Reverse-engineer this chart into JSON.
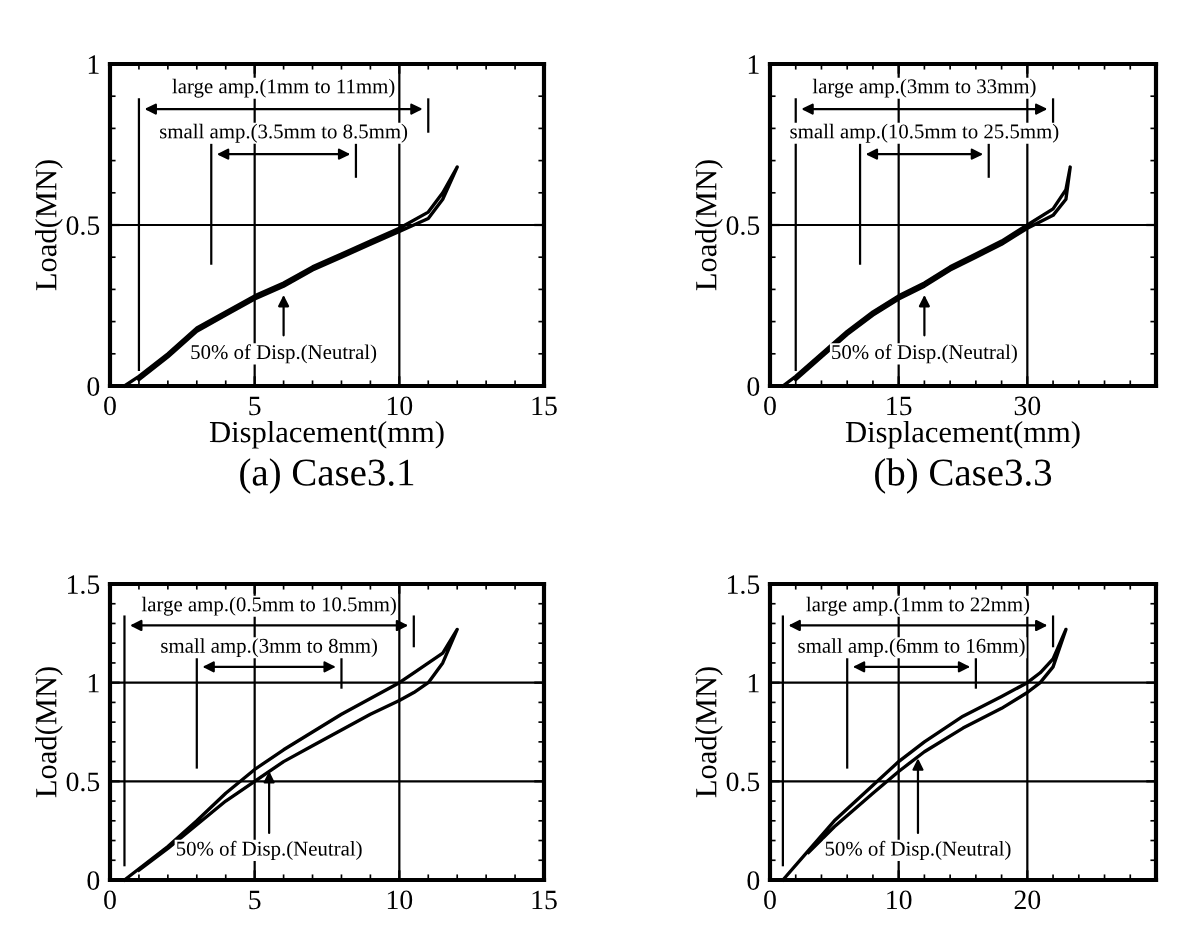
{
  "chart_data": [
    {
      "type": "line",
      "xlabel": "Displacement(mm)",
      "ylabel": "Load(MN)",
      "xlim": [
        0,
        15
      ],
      "ylim": [
        0,
        1
      ],
      "xticks": [
        0,
        5,
        10,
        15
      ],
      "yticks": [
        0,
        0.5,
        1
      ],
      "grid": true,
      "line_style": "solid",
      "series": [
        {
          "color": "#000000",
          "x": [
            0.5,
            1,
            2,
            3,
            4,
            5,
            6,
            7,
            8,
            9,
            10,
            11,
            11.5,
            12,
            11.5,
            11,
            10,
            9,
            8,
            7,
            6,
            5,
            4,
            3,
            2,
            1
          ],
          "values": [
            0,
            0.03,
            0.1,
            0.18,
            0.23,
            0.28,
            0.32,
            0.37,
            0.41,
            0.45,
            0.49,
            0.54,
            0.6,
            0.68,
            0.58,
            0.52,
            0.48,
            0.44,
            0.4,
            0.36,
            0.31,
            0.27,
            0.22,
            0.17,
            0.09,
            0.02
          ]
        }
      ],
      "ref_lines": [
        {
          "axis": "x",
          "value": 1
        },
        {
          "axis": "x",
          "value": 11
        },
        {
          "axis": "x",
          "value": 3.5
        },
        {
          "axis": "x",
          "value": 8.5
        }
      ],
      "annotations": [
        "large amp.(1mm to 11mm)",
        "small amp.(3.5mm to 8.5mm)",
        "50% of Disp.(Neutral)",
        "(a) Case3.1"
      ]
    },
    {
      "type": "line",
      "xlabel": "Displacement(mm)",
      "ylabel": "Load(MN)",
      "xlim": [
        0,
        45
      ],
      "ylim": [
        0,
        1
      ],
      "xticks": [
        0,
        15,
        30
      ],
      "yticks": [
        0,
        0.5,
        1
      ],
      "grid": true,
      "line_style": "solid",
      "series": [
        {
          "color": "#000000",
          "x": [
            1.5,
            3,
            6,
            9,
            12,
            15,
            18,
            21,
            24,
            27,
            30,
            33,
            34.5,
            35,
            34.5,
            33,
            30,
            27,
            24,
            21,
            18,
            15,
            12,
            9,
            6,
            3
          ],
          "values": [
            0,
            0.03,
            0.1,
            0.17,
            0.23,
            0.28,
            0.32,
            0.37,
            0.41,
            0.45,
            0.5,
            0.55,
            0.61,
            0.68,
            0.58,
            0.53,
            0.49,
            0.44,
            0.4,
            0.36,
            0.31,
            0.27,
            0.22,
            0.16,
            0.09,
            0.02
          ]
        }
      ],
      "ref_lines": [
        {
          "axis": "x",
          "value": 3
        },
        {
          "axis": "x",
          "value": 33
        },
        {
          "axis": "x",
          "value": 10.5
        },
        {
          "axis": "x",
          "value": 25.5
        }
      ],
      "annotations": [
        "large amp.(3mm to 33mm)",
        "small amp.(10.5mm to 25.5mm)",
        "50% of Disp.(Neutral)",
        "(b) Case3.3"
      ]
    },
    {
      "type": "line",
      "ylabel": "Load(MN)",
      "xlim": [
        0,
        15
      ],
      "ylim": [
        0,
        1.5
      ],
      "xticks": [
        0,
        5,
        10,
        15
      ],
      "yticks": [
        0,
        0.5,
        1,
        1.5
      ],
      "grid": true,
      "line_style": "solid",
      "series": [
        {
          "color": "#000000",
          "x": [
            0.5,
            2,
            3,
            4,
            5,
            6,
            7,
            8,
            9,
            10,
            10.5,
            11.5,
            12,
            11.5,
            11,
            10.5,
            10,
            9,
            8,
            7,
            6,
            5,
            4,
            3,
            2,
            1
          ],
          "values": [
            0,
            0.17,
            0.3,
            0.44,
            0.56,
            0.66,
            0.75,
            0.84,
            0.92,
            1.0,
            1.05,
            1.15,
            1.27,
            1.1,
            1.0,
            0.95,
            0.91,
            0.84,
            0.76,
            0.68,
            0.6,
            0.5,
            0.4,
            0.28,
            0.16,
            0.05
          ]
        }
      ],
      "ref_lines": [
        {
          "axis": "x",
          "value": 0.5
        },
        {
          "axis": "x",
          "value": 10.5
        },
        {
          "axis": "x",
          "value": 3
        },
        {
          "axis": "x",
          "value": 8
        }
      ],
      "annotations": [
        "large amp.(0.5mm to 10.5mm)",
        "small amp.(3mm to 8mm)",
        "50% of Disp.(Neutral)"
      ]
    },
    {
      "type": "line",
      "ylabel": "Load(MN)",
      "xlim": [
        0,
        30
      ],
      "ylim": [
        0,
        1.5
      ],
      "xticks": [
        0,
        10,
        20
      ],
      "yticks": [
        0,
        0.5,
        1,
        1.5
      ],
      "grid": true,
      "line_style": "solid",
      "series": [
        {
          "color": "#000000",
          "x": [
            1,
            3,
            5,
            8,
            10,
            12,
            15,
            18,
            20,
            21,
            22,
            23,
            22,
            21,
            20,
            18,
            15,
            12,
            10,
            8,
            5,
            3
          ],
          "values": [
            0,
            0.15,
            0.3,
            0.48,
            0.6,
            0.7,
            0.83,
            0.93,
            1.0,
            1.05,
            1.12,
            1.27,
            1.08,
            1.0,
            0.95,
            0.87,
            0.77,
            0.65,
            0.55,
            0.44,
            0.27,
            0.14
          ]
        }
      ],
      "ref_lines": [
        {
          "axis": "x",
          "value": 1
        },
        {
          "axis": "x",
          "value": 22
        },
        {
          "axis": "x",
          "value": 6
        },
        {
          "axis": "x",
          "value": 16
        }
      ],
      "annotations": [
        "large amp.(1mm to 22mm)",
        "small amp.(6mm to 16mm)",
        "50% of Disp.(Neutral)"
      ]
    }
  ]
}
